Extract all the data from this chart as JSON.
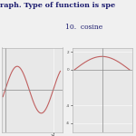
{
  "title_top": "raph. Type of function is spe",
  "label_10": "10.  cosine",
  "bg_color": "#f0f0f0",
  "plot_bg": "#e8e8e8",
  "line_color": "#c06060",
  "line_width": 0.8,
  "left_plot": {
    "xlim": [
      -0.5,
      7.5
    ],
    "ylim": [
      -1.8,
      1.8
    ],
    "x_data_start": -0.3,
    "x_data_end": 7.2
  },
  "right_plot": {
    "xlim": [
      -3.8,
      3.8
    ],
    "ylim": [
      -7,
      2.5
    ],
    "ytick_vals": [
      2,
      0,
      -4,
      -6
    ],
    "ytick_labels": [
      "2",
      "0",
      "-4",
      "-6"
    ],
    "amplitude": 1.5,
    "period_half": 3.5
  }
}
